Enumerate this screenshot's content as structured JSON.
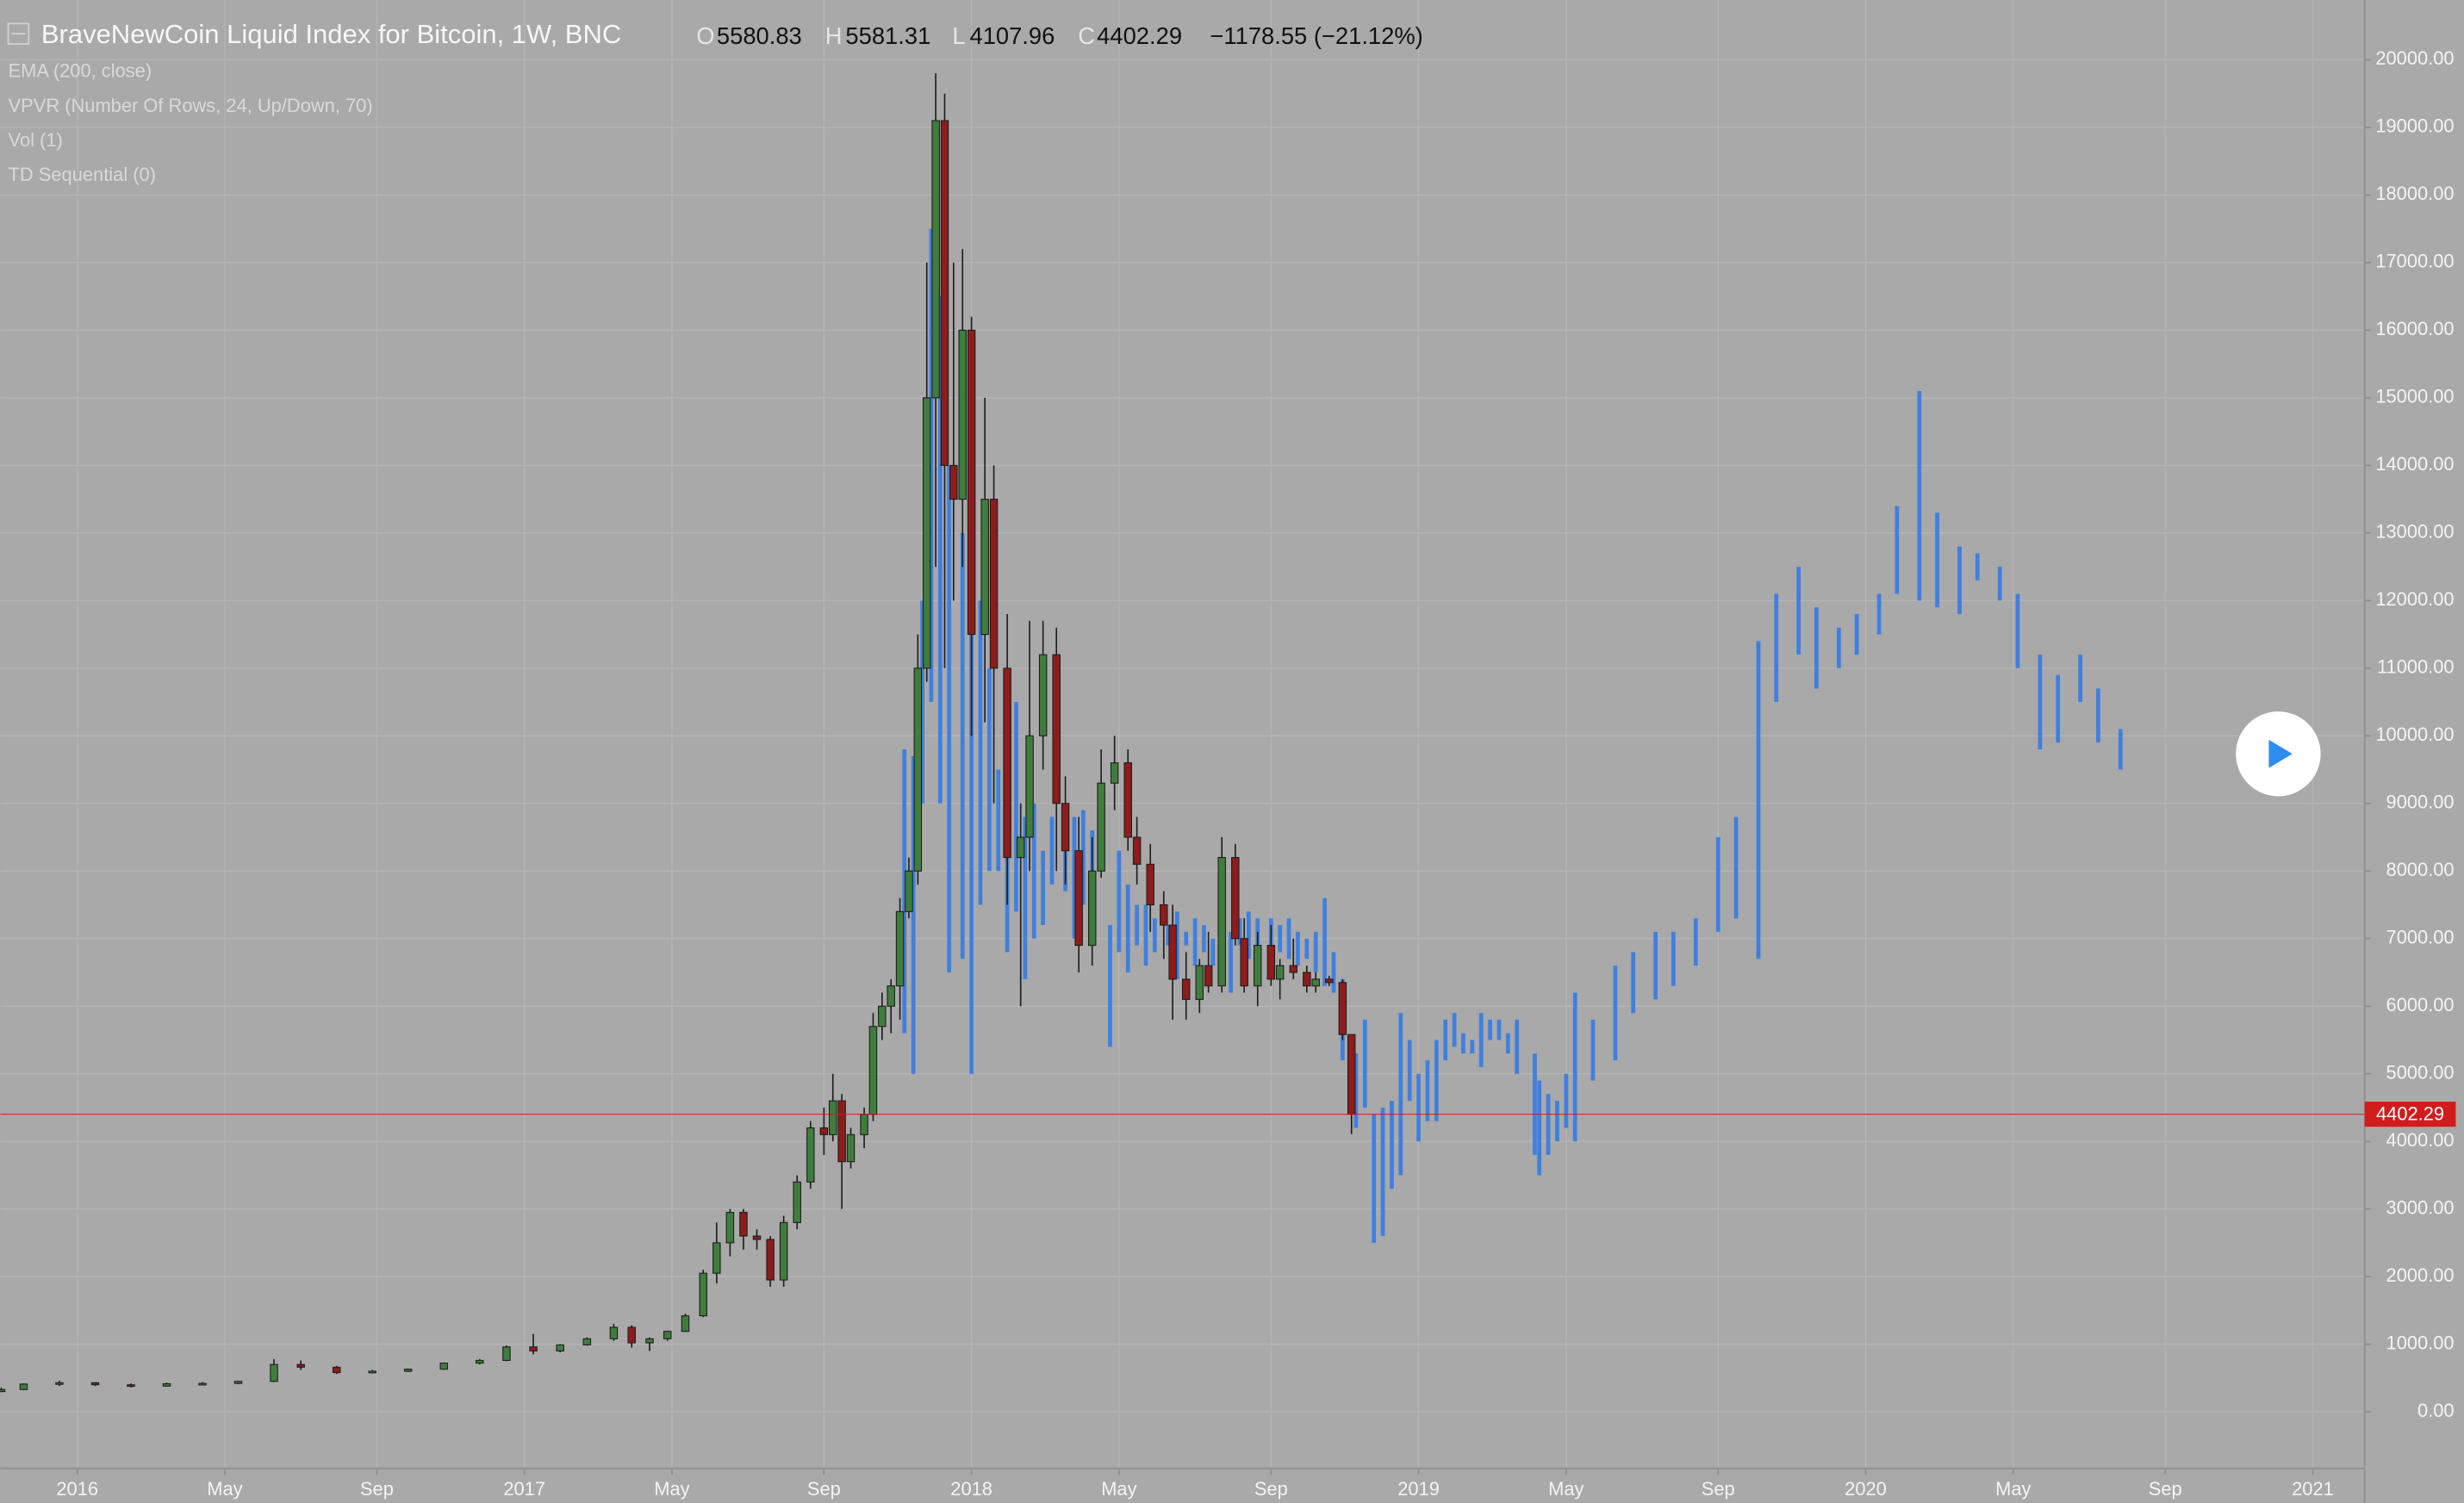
{
  "chart_data": {
    "type": "candlestick",
    "title": "BraveNewCoin Liquid Index for Bitcoin, 1W, BNC",
    "header_labels": [
      "O",
      "H",
      "L",
      "C"
    ],
    "change": "−1178.55 (−21.12%)",
    "indicators": [
      "EMA (200, close)",
      "VPVR (Number Of Rows, 24, Up/Down, 70)",
      "Vol (1)",
      "TD Sequential (0)"
    ],
    "up_color": "#3f7d3c",
    "down_color": "#8e1c1c",
    "x": [
      2015.83,
      2015.88,
      2015.96,
      2016.04,
      2016.12,
      2016.2,
      2016.28,
      2016.36,
      2016.44,
      2016.5,
      2016.58,
      2016.66,
      2016.74,
      2016.82,
      2016.9,
      2016.96,
      2017.02,
      2017.08,
      2017.14,
      2017.2,
      2017.24,
      2017.28,
      2017.32,
      2017.36,
      2017.4,
      2017.43,
      2017.46,
      2017.49,
      2017.52,
      2017.55,
      2017.58,
      2017.61,
      2017.64,
      2017.67,
      2017.69,
      2017.71,
      2017.73,
      2017.76,
      2017.78,
      2017.8,
      2017.82,
      2017.84,
      2017.86,
      2017.88,
      2017.9,
      2017.92,
      2017.94,
      2017.96,
      2017.98,
      2018.0,
      2018.03,
      2018.05,
      2018.08,
      2018.11,
      2018.13,
      2018.16,
      2018.19,
      2018.21,
      2018.24,
      2018.27,
      2018.29,
      2018.32,
      2018.35,
      2018.37,
      2018.4,
      2018.43,
      2018.45,
      2018.48,
      2018.51,
      2018.53,
      2018.56,
      2018.59,
      2018.61,
      2018.64,
      2018.67,
      2018.69,
      2018.72,
      2018.75,
      2018.77,
      2018.8,
      2018.83,
      2018.85
    ],
    "open": [
      300,
      330,
      410,
      430,
      400,
      380,
      415,
      420,
      450,
      700,
      660,
      580,
      600,
      630,
      720,
      760,
      960,
      900,
      990,
      1080,
      1250,
      1020,
      1080,
      1190,
      1420,
      2050,
      2500,
      2950,
      2600,
      2550,
      1950,
      2800,
      3400,
      4200,
      4100,
      4600,
      3700,
      4100,
      4400,
      5700,
      6000,
      6300,
      7400,
      8000,
      11000,
      15000,
      19100,
      14000,
      13500,
      16000,
      11500,
      13500,
      11000,
      8200,
      8500,
      10000,
      11200,
      9000,
      8300,
      6900,
      8000,
      9300,
      9600,
      8500,
      8100,
      7500,
      7200,
      6400,
      6100,
      6600,
      6300,
      8200,
      7000,
      6300,
      6900,
      6400,
      6600,
      6500,
      6300,
      6400,
      6350,
      5580.83
    ],
    "high": [
      360,
      420,
      460,
      440,
      420,
      430,
      440,
      460,
      780,
      760,
      680,
      620,
      640,
      730,
      780,
      980,
      1150,
      1000,
      1100,
      1300,
      1280,
      1100,
      1200,
      1450,
      2100,
      2800,
      3000,
      3000,
      2700,
      2600,
      2900,
      3500,
      4300,
      4500,
      5000,
      4700,
      4200,
      4500,
      5900,
      6200,
      6400,
      7600,
      8200,
      11500,
      17000,
      19800,
      19500,
      17000,
      17200,
      16200,
      15000,
      14000,
      11800,
      9000,
      11700,
      11700,
      11600,
      9400,
      8800,
      8500,
      9800,
      10000,
      9800,
      8800,
      8400,
      7700,
      7500,
      6800,
      6700,
      7100,
      8500,
      8400,
      7300,
      7100,
      7200,
      6700,
      7000,
      6600,
      6500,
      6450,
      6400,
      5581.31
    ],
    "low": [
      290,
      320,
      380,
      380,
      360,
      370,
      400,
      410,
      440,
      620,
      560,
      570,
      590,
      620,
      700,
      750,
      850,
      880,
      980,
      1050,
      950,
      900,
      1050,
      1180,
      1400,
      1900,
      2300,
      2400,
      2400,
      1850,
      1850,
      2700,
      3300,
      3800,
      4000,
      3000,
      3600,
      3900,
      4300,
      5500,
      5600,
      5800,
      7300,
      7800,
      10800,
      12500,
      11000,
      12000,
      12500,
      10000,
      10200,
      9000,
      7500,
      6000,
      8000,
      9500,
      8000,
      7800,
      6500,
      6600,
      7900,
      8900,
      8300,
      7800,
      7100,
      6700,
      5800,
      5800,
      5900,
      6200,
      6200,
      6900,
      6200,
      6000,
      6300,
      6100,
      6400,
      6200,
      6200,
      6300,
      5500,
      4107.96
    ],
    "close": [
      330,
      410,
      430,
      400,
      380,
      415,
      420,
      450,
      700,
      660,
      580,
      600,
      630,
      720,
      760,
      960,
      900,
      990,
      1080,
      1250,
      1020,
      1080,
      1190,
      1420,
      2050,
      2500,
      2950,
      2600,
      2550,
      1950,
      2800,
      3400,
      4200,
      4100,
      4600,
      3700,
      4100,
      4400,
      5700,
      6000,
      6300,
      7400,
      8000,
      11000,
      15000,
      19100,
      14000,
      13500,
      16000,
      11500,
      13500,
      11000,
      8200,
      8500,
      10000,
      11200,
      9000,
      8300,
      6900,
      8000,
      9300,
      9600,
      8500,
      8100,
      7500,
      7200,
      6400,
      6100,
      6600,
      6300,
      8200,
      7000,
      6300,
      6900,
      6400,
      6600,
      6500,
      6300,
      6400,
      6350,
      5580.83,
      4402.29
    ],
    "overlay": {
      "type": "range-bar",
      "color": "#3f7fe0",
      "x": [
        2017.85,
        2017.87,
        2017.89,
        2017.91,
        2017.93,
        2017.95,
        2017.98,
        2018.0,
        2018.02,
        2018.04,
        2018.06,
        2018.08,
        2018.1,
        2018.12,
        2018.14,
        2018.16,
        2018.18,
        2018.21,
        2018.23,
        2018.25,
        2018.27,
        2018.29,
        2018.31,
        2018.33,
        2018.35,
        2018.37,
        2018.39,
        2018.41,
        2018.44,
        2018.46,
        2018.48,
        2018.5,
        2018.52,
        2018.54,
        2018.56,
        2018.58,
        2018.6,
        2018.62,
        2018.64,
        2018.67,
        2018.69,
        2018.71,
        2018.73,
        2018.75,
        2018.77,
        2018.79,
        2018.81,
        2018.83,
        2018.86,
        2018.88,
        2018.9,
        2018.92,
        2018.94,
        2018.96,
        2018.98,
        2019.0,
        2019.02,
        2019.04,
        2019.06,
        2019.08,
        2019.1,
        2019.12,
        2019.14,
        2019.16,
        2019.18,
        2019.2,
        2019.22,
        2019.26,
        2019.27,
        2019.29,
        2019.31,
        2019.33,
        2019.35,
        2019.39,
        2019.44,
        2019.48,
        2019.53,
        2019.57,
        2019.62,
        2019.67,
        2019.71,
        2019.76,
        2019.8,
        2019.85,
        2019.89,
        2019.94,
        2019.98,
        2020.03,
        2020.07,
        2020.12,
        2020.16,
        2020.21,
        2020.25,
        2020.3,
        2020.34,
        2020.39,
        2020.43,
        2020.48,
        2020.52,
        2020.57
      ],
      "low": [
        5600,
        5000,
        9000,
        10500,
        9000,
        6500,
        6700,
        5000,
        7500,
        8000,
        8000,
        6800,
        7400,
        6400,
        7000,
        7200,
        7800,
        7700,
        7000,
        7500,
        7600,
        8000,
        5400,
        6800,
        6500,
        6900,
        6600,
        6800,
        6900,
        6400,
        6900,
        6600,
        6800,
        6600,
        6300,
        6200,
        6900,
        6700,
        6600,
        6500,
        6800,
        6700,
        6600,
        6700,
        6500,
        6300,
        6200,
        5200,
        4200,
        4500,
        2500,
        2600,
        3300,
        3500,
        4600,
        4000,
        4300,
        4300,
        5200,
        5400,
        5300,
        5300,
        5100,
        5500,
        5500,
        5300,
        5000,
        3800,
        3500,
        3800,
        4000,
        4200,
        4000,
        4900,
        5200,
        5900,
        6100,
        6300,
        6600,
        7100,
        7300,
        6700,
        10500,
        11200,
        10700,
        11000,
        11200,
        11500,
        12100,
        12000,
        11900,
        11800,
        12300,
        12000,
        11000,
        9800,
        9900,
        10500,
        9900,
        9500
      ],
      "high": [
        9800,
        9700,
        12000,
        17500,
        16500,
        14000,
        13000,
        13100,
        12000,
        11000,
        9500,
        9500,
        10500,
        8800,
        9000,
        8300,
        8800,
        9000,
        8800,
        8900,
        8600,
        9000,
        7200,
        8300,
        7800,
        7500,
        7500,
        7300,
        7200,
        7400,
        7100,
        7300,
        7200,
        7000,
        7000,
        7100,
        7300,
        7400,
        7300,
        7300,
        7200,
        7300,
        7100,
        7000,
        7100,
        7600,
        6800,
        6400,
        5300,
        5800,
        4400,
        4500,
        4600,
        5900,
        5500,
        5000,
        5200,
        5500,
        5800,
        5900,
        5600,
        5500,
        5900,
        5800,
        5800,
        5600,
        5800,
        5300,
        4900,
        4700,
        4600,
        5000,
        6200,
        5800,
        6600,
        6800,
        7100,
        7100,
        7300,
        8500,
        8800,
        11400,
        12100,
        12500,
        11900,
        11600,
        11800,
        12100,
        13400,
        15100,
        13300,
        12800,
        12700,
        12500,
        12100,
        11200,
        10900,
        11200,
        10700,
        10100
      ]
    },
    "xlim": [
      2015.828,
      2021.116
    ],
    "xticks": [
      {
        "value": 2016,
        "label": "2016"
      },
      {
        "value": 2016.33,
        "label": "May"
      },
      {
        "value": 2016.67,
        "label": "Sep"
      },
      {
        "value": 2017,
        "label": "2017"
      },
      {
        "value": 2017.33,
        "label": "May"
      },
      {
        "value": 2017.67,
        "label": "Sep"
      },
      {
        "value": 2018,
        "label": "2018"
      },
      {
        "value": 2018.33,
        "label": "May"
      },
      {
        "value": 2018.67,
        "label": "Sep"
      },
      {
        "value": 2019,
        "label": "2019"
      },
      {
        "value": 2019.33,
        "label": "May"
      },
      {
        "value": 2019.67,
        "label": "Sep"
      },
      {
        "value": 2020,
        "label": "2020"
      },
      {
        "value": 2020.33,
        "label": "May"
      },
      {
        "value": 2020.67,
        "label": "Sep"
      },
      {
        "value": 2021,
        "label": "2021"
      }
    ],
    "ylim": [
      -838,
      20885
    ],
    "yticks": [
      {
        "value": 0,
        "label": "0.00"
      },
      {
        "value": 1000,
        "label": "1000.00"
      },
      {
        "value": 2000,
        "label": "2000.00"
      },
      {
        "value": 3000,
        "label": "3000.00"
      },
      {
        "value": 4000,
        "label": "4000.00"
      },
      {
        "value": 5000,
        "label": "5000.00"
      },
      {
        "value": 6000,
        "label": "6000.00"
      },
      {
        "value": 7000,
        "label": "7000.00"
      },
      {
        "value": 8000,
        "label": "8000.00"
      },
      {
        "value": 9000,
        "label": "9000.00"
      },
      {
        "value": 10000,
        "label": "10000.00"
      },
      {
        "value": 11000,
        "label": "11000.00"
      },
      {
        "value": 12000,
        "label": "12000.00"
      },
      {
        "value": 13000,
        "label": "13000.00"
      },
      {
        "value": 14000,
        "label": "14000.00"
      },
      {
        "value": 15000,
        "label": "15000.00"
      },
      {
        "value": 16000,
        "label": "16000.00"
      },
      {
        "value": 17000,
        "label": "17000.00"
      },
      {
        "value": 18000,
        "label": "18000.00"
      },
      {
        "value": 19000,
        "label": "19000.00"
      },
      {
        "value": 20000,
        "label": "20000.00"
      }
    ],
    "grid": true,
    "last_price_color": "#d01c1c"
  }
}
